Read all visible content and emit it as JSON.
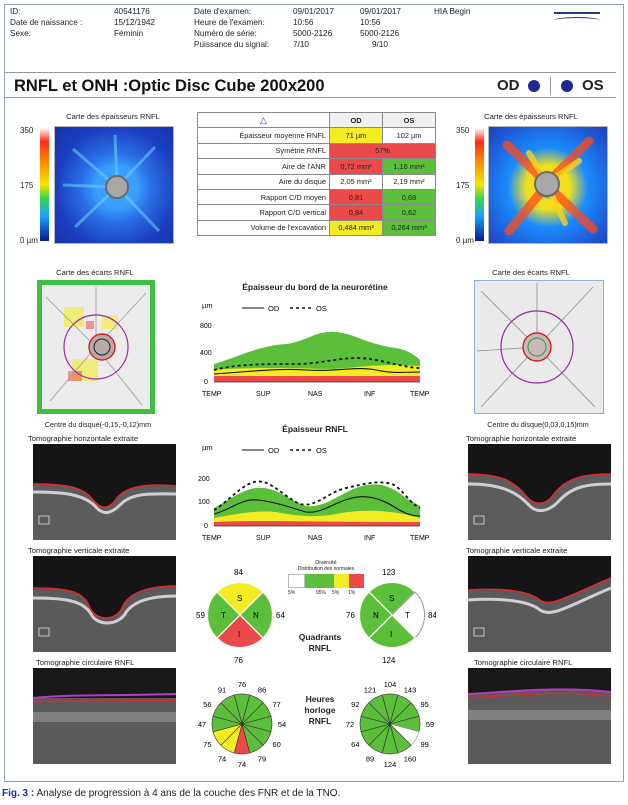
{
  "header": {
    "id_label": "ID:",
    "id_value": "40541176",
    "dob_label": "Date de naissance :",
    "dob_value": "15/12/1942",
    "sex_label": "Sexe:",
    "sex_value": "Féminin",
    "exam_date_label": "Date d'examen:",
    "exam_date_od": "09/01/2017",
    "exam_date_os": "09/01/2017",
    "exam_time_label": "Heure de l'examen:",
    "exam_time_od": "10:56",
    "exam_time_os": "10:56",
    "serial_label": "Numéro de série:",
    "serial_od": "5000-2126",
    "serial_os": "5000-2126",
    "signal_label": "Puissance du signal:",
    "signal_od": "7/10",
    "signal_os": "9/10",
    "operator": "HIA Begin"
  },
  "title": "RNFL et ONH :Optic Disc Cube 200x200",
  "eyes": {
    "od": "OD",
    "os": "OS"
  },
  "thickness_map": {
    "title": "Carte des épaisseurs RNFL",
    "scale_top": "350",
    "scale_mid": "175",
    "scale_bottom": "0 µm"
  },
  "table": {
    "head_od": "OD",
    "head_os": "OS",
    "rows": [
      {
        "label": "Épaisseur moyenne RNFL",
        "od": "71 µm",
        "os": "102 µm",
        "od_color": "yellow",
        "os_color": "white"
      },
      {
        "label": "Symétrie RNFL",
        "merged": "57%",
        "color": "red"
      },
      {
        "label": "Aire de l'ANR",
        "od": "0,72 mm²",
        "os": "1,16 mm²",
        "od_color": "red",
        "os_color": "green"
      },
      {
        "label": "Aire du disque",
        "od": "2,05 mm²",
        "os": "2,19 mm²",
        "od_color": "white",
        "os_color": "white"
      },
      {
        "label": "Rapport C/D moyen",
        "od": "0,81",
        "os": "0,68",
        "od_color": "red",
        "os_color": "green"
      },
      {
        "label": "Rapport C/D vertical",
        "od": "0,84",
        "os": "0,62",
        "od_color": "red",
        "os_color": "green"
      },
      {
        "label": "Volume de l'excavation",
        "od": "0,484 mm³",
        "os": "0,264 mm³",
        "od_color": "yellow",
        "os_color": "green"
      }
    ]
  },
  "deviation": {
    "title": "Carte des écarts RNFL",
    "center_od": "Centre du disque(-0,15,-0,12)mm",
    "center_os": "Centre du disque(0,03,0,15)mm"
  },
  "rim_chart": {
    "title": "Épaisseur du bord de la neurorétine",
    "unit": "µm",
    "legend_od": "OD",
    "legend_os": "OS",
    "yticks": [
      "800",
      "400",
      "0"
    ],
    "xticks": [
      "TEMP",
      "SUP",
      "NAS",
      "INF",
      "TEMP"
    ]
  },
  "rnfl_chart": {
    "title": "Épaisseur RNFL",
    "unit": "µm",
    "legend_od": "OD",
    "legend_os": "OS",
    "yticks": [
      "200",
      "100",
      "0"
    ],
    "xticks": [
      "TEMP",
      "SUP",
      "NAS",
      "INF",
      "TEMP"
    ]
  },
  "oct": {
    "horizontal": "Tomographie horizontale extraite",
    "vertical": "Tomographie verticale extraite",
    "circular": "Tomographie circulaire RNFL"
  },
  "legend": {
    "title": "Diversité",
    "subtitle": "Distribution des normales",
    "labels": [
      "95%",
      "5%",
      "1%"
    ],
    "tick": "5%"
  },
  "quadrants": {
    "title_1": "Quadrants",
    "title_2": "RNFL",
    "od": {
      "top": "84",
      "left": "59",
      "right": "64",
      "bottom": "76",
      "letters": [
        "S",
        "N",
        "I",
        "T"
      ]
    },
    "os": {
      "top": "123",
      "left": "76",
      "right": "84",
      "bottom": "124",
      "letters": [
        "S",
        "T",
        "I",
        "N"
      ]
    }
  },
  "clock": {
    "title_1": "Heures",
    "title_2": "horloge",
    "title_3": "RNFL",
    "od": [
      "76",
      "86",
      "77",
      "54",
      "60",
      "79",
      "74",
      "74",
      "75",
      "47",
      "56",
      "91"
    ],
    "os": [
      "104",
      "143",
      "95",
      "59",
      "99",
      "160",
      "124",
      "89",
      "64",
      "72",
      "92",
      "121"
    ]
  },
  "colors": {
    "green": "#5cbf3c",
    "yellow": "#f3ec22",
    "red": "#ec4a4a",
    "od_line": "#111111",
    "accent": "#1d2a8c"
  },
  "caption": {
    "fig": "Fig. 3 :",
    "text": "Analyse de progression à 4 ans de la couche des FNR et de la TNO."
  }
}
